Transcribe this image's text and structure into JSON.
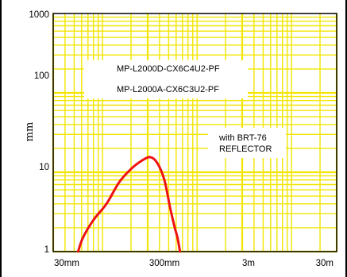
{
  "chart_data": {
    "type": "line",
    "title": "",
    "xlabel": "",
    "ylabel": "mm",
    "x_scale": "log",
    "y_scale": "log",
    "xlim": [
      "30mm",
      "30m"
    ],
    "ylim": [
      1,
      1000
    ],
    "grid": true,
    "colors": {
      "grid": "#f2e600",
      "curve": "#ee1111",
      "frame": "#000000"
    },
    "x_tick_labels": [
      "30mm",
      "300mm",
      "3m",
      "30m"
    ],
    "y_tick_labels": [
      "1000",
      "100",
      "10",
      "1"
    ],
    "annotations": {
      "models": [
        "MP-L2000D-CX6C4U2-PF",
        "MP-L2000A-CX6C3U2-PF"
      ],
      "reflector": [
        "with BRT-76",
        "REFLECTOR"
      ]
    },
    "series": [
      {
        "x_mm": [
          55,
          62,
          80,
          110,
          150,
          200,
          260,
          320,
          380,
          450,
          520,
          580,
          620,
          660
        ],
        "y_mm": [
          1,
          1.5,
          2.5,
          4,
          7.5,
          11,
          14,
          15.5,
          13,
          8,
          3.5,
          2,
          1.5,
          1
        ]
      }
    ]
  }
}
